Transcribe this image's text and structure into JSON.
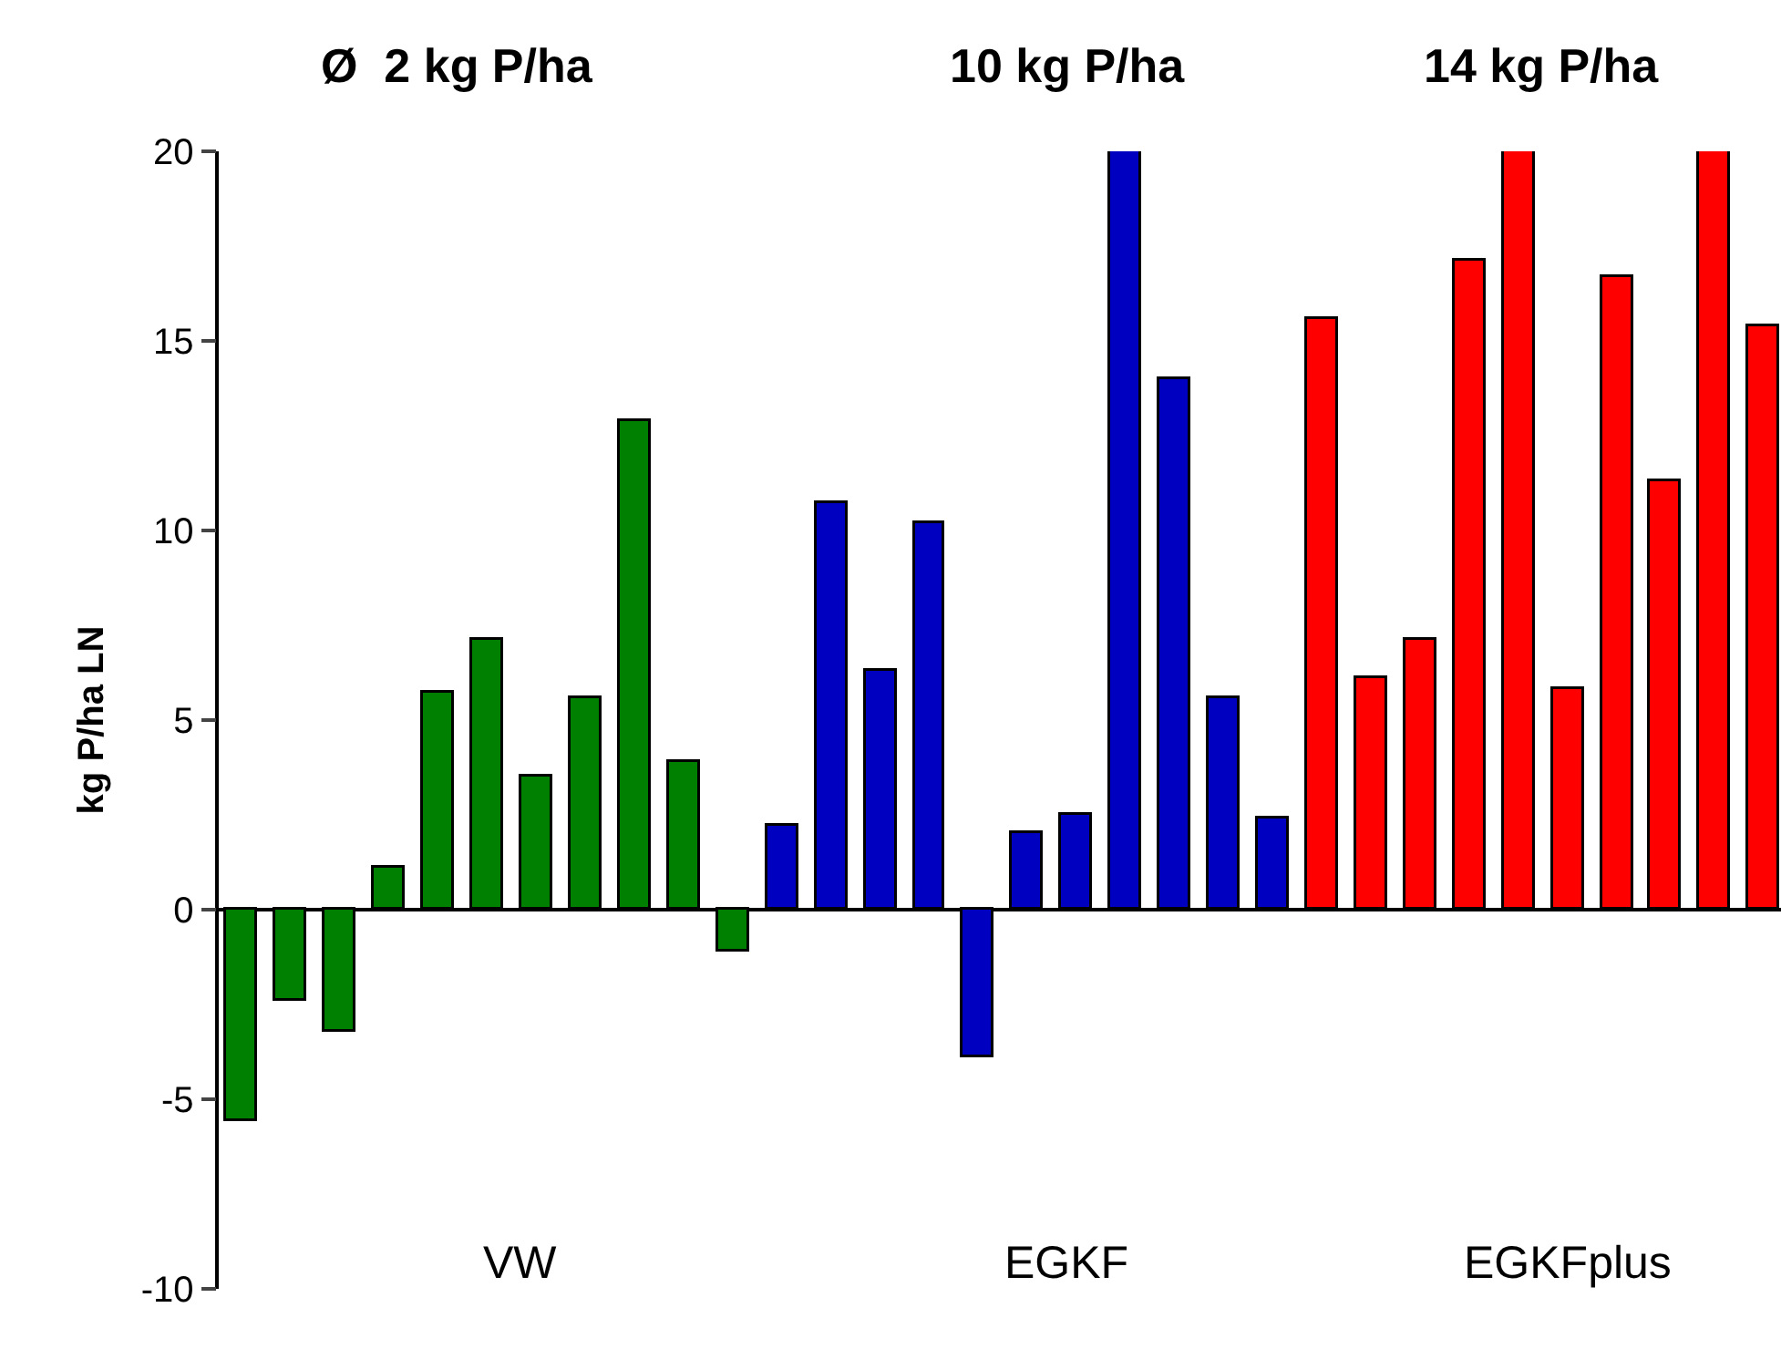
{
  "chart_data": {
    "type": "bar",
    "ylabel": "kg P/ha LN",
    "categories": [
      null,
      null,
      null,
      null,
      null,
      null,
      null,
      null,
      null,
      null,
      null,
      null,
      null,
      null,
      null,
      null,
      null,
      null,
      null,
      null,
      null,
      null,
      null,
      null,
      null,
      null,
      null,
      null,
      null,
      null,
      null,
      null
    ],
    "values": [
      -5.6,
      -2.4,
      -3.2,
      1.1,
      5.7,
      7.1,
      3.5,
      5.6,
      12.9,
      3.9,
      -1.1,
      2.2,
      10.7,
      6.3,
      10.2,
      -3.9,
      2.0,
      2.5,
      20,
      14,
      5.6,
      2.4,
      15.6,
      6.1,
      7.1,
      17.1,
      20,
      5.8,
      16.7,
      11.3,
      20,
      15.4
    ],
    "colors": [
      "#008000",
      "#008000",
      "#008000",
      "#008000",
      "#008000",
      "#008000",
      "#008000",
      "#008000",
      "#008000",
      "#008000",
      "#008000",
      "#0000c0",
      "#0000c0",
      "#0000c0",
      "#0000c0",
      "#0000c0",
      "#0000c0",
      "#0000c0",
      "#0000c0",
      "#0000c0",
      "#0000c0",
      "#0000c0",
      "#ff0000",
      "#ff0000",
      "#ff0000",
      "#ff0000",
      "#ff0000",
      "#ff0000",
      "#ff0000",
      "#ff0000",
      "#ff0000",
      "#ff0000"
    ],
    "ylim": [
      -10,
      20
    ],
    "yticks": [
      -10,
      -5,
      0,
      5,
      10,
      15,
      20
    ],
    "annotations": [
      "Ø  2 kg P/ha",
      "10 kg P/ha",
      "14 kg P/ha",
      "VW",
      "EGKF",
      "EGKFplus"
    ]
  }
}
